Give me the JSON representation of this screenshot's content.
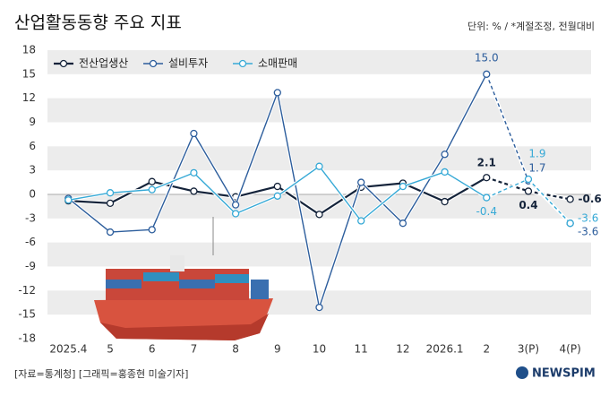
{
  "chart_data": {
    "type": "line",
    "title": "산업활동동향 주요 지표",
    "subtitle": "단위: % / *계절조정, 전월대비",
    "source": "[자료=통계청] [그래픽=홍종현 미술기자]",
    "logo": "NEWSPIM",
    "categories": [
      "2025.4",
      "5",
      "6",
      "7",
      "8",
      "9",
      "10",
      "11",
      "12",
      "2026.1",
      "2",
      "3(P)",
      "4(P)"
    ],
    "dashed": [
      false,
      false,
      false,
      false,
      false,
      false,
      false,
      false,
      false,
      false,
      false,
      true,
      true
    ],
    "ylim": [
      -18,
      18
    ],
    "yticks": [
      -18,
      -15,
      -12,
      -9,
      -6,
      -3,
      0,
      3,
      6,
      9,
      12,
      15,
      18
    ],
    "grid": true,
    "legend": "top-left",
    "series": [
      {
        "name": "전산업생산",
        "color": "#14233a",
        "values": [
          -0.8,
          -1.1,
          1.6,
          0.4,
          -0.3,
          1.0,
          -2.5,
          0.9,
          1.4,
          -0.9,
          2.1,
          0.4,
          -0.6
        ],
        "value_labels": [
          null,
          null,
          null,
          null,
          null,
          null,
          null,
          null,
          null,
          null,
          "2.1",
          "0.4",
          "-0.6"
        ]
      },
      {
        "name": "설비투자",
        "color": "#2c5d9c",
        "values": [
          -0.5,
          -4.7,
          -4.4,
          7.6,
          -1.3,
          12.7,
          -14.1,
          1.5,
          -3.6,
          5.0,
          15.0,
          1.7,
          -3.6
        ],
        "value_labels": [
          null,
          null,
          null,
          null,
          null,
          null,
          null,
          null,
          null,
          null,
          "15.0",
          "1.7",
          "-3.6"
        ]
      },
      {
        "name": "소매판매",
        "color": "#36a9d6",
        "values": [
          -0.7,
          0.2,
          0.6,
          2.7,
          -2.4,
          -0.2,
          3.5,
          -3.3,
          1.0,
          2.8,
          -0.4,
          1.9,
          -3.6
        ],
        "value_labels": [
          null,
          null,
          null,
          null,
          null,
          null,
          null,
          null,
          null,
          null,
          "-0.4",
          "1.9",
          "-3.6"
        ]
      }
    ]
  }
}
